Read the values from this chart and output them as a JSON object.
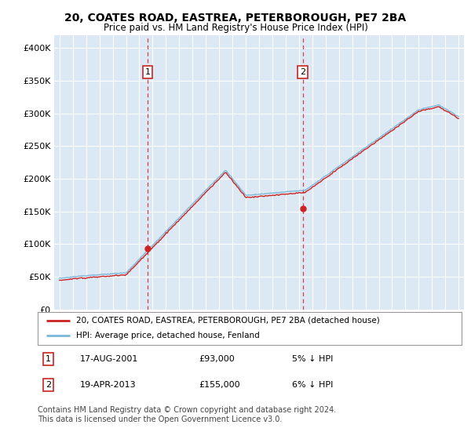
{
  "title": "20, COATES ROAD, EASTREA, PETERBOROUGH, PE7 2BA",
  "subtitle": "Price paid vs. HM Land Registry's House Price Index (HPI)",
  "title_fontsize": 10,
  "subtitle_fontsize": 8.5,
  "background_color": "#ffffff",
  "plot_bg_color": "#dce9f5",
  "grid_color": "#ffffff",
  "ylim": [
    0,
    420000
  ],
  "yticks": [
    0,
    50000,
    100000,
    150000,
    200000,
    250000,
    300000,
    350000,
    400000
  ],
  "ytick_labels": [
    "£0",
    "£50K",
    "£100K",
    "£150K",
    "£200K",
    "£250K",
    "£300K",
    "£350K",
    "£400K"
  ],
  "hpi_color": "#7ab8d9",
  "price_color": "#cc2222",
  "sale1_year": 2001.625,
  "sale1_price": 93000,
  "sale2_year": 2013.29,
  "sale2_price": 155000,
  "legend_line1": "20, COATES ROAD, EASTREA, PETERBOROUGH, PE7 2BA (detached house)",
  "legend_line2": "HPI: Average price, detached house, Fenland",
  "sale1_date": "17-AUG-2001",
  "sale1_price_str": "£93,000",
  "sale1_hpi": "5% ↓ HPI",
  "sale2_date": "19-APR-2013",
  "sale2_price_str": "£155,000",
  "sale2_hpi": "6% ↓ HPI",
  "footnote": "Contains HM Land Registry data © Crown copyright and database right 2024.\nThis data is licensed under the Open Government Licence v3.0.",
  "footnote_fontsize": 7
}
